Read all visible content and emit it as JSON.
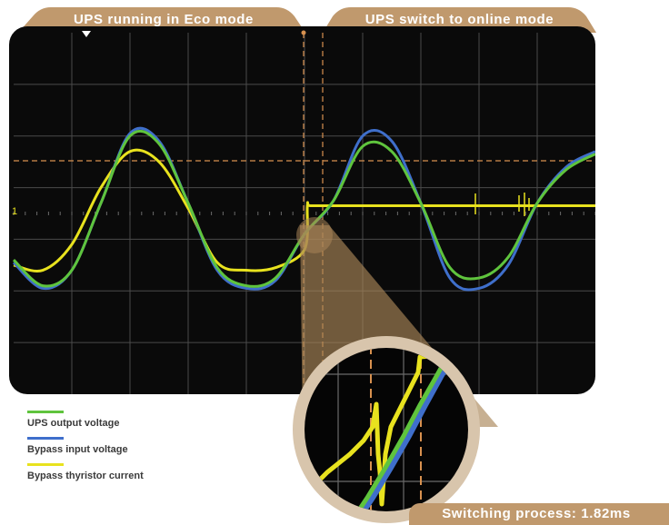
{
  "header": {
    "left_label": "UPS running in Eco mode",
    "right_label": "UPS switch to online mode"
  },
  "channel_marker": "1",
  "legend": [
    {
      "label": "UPS output voltage",
      "color": "#5fc43d"
    },
    {
      "label": "Bypass input voltage",
      "color": "#3f6fcb"
    },
    {
      "label": "Bypass thyristor current",
      "color": "#e8e21e"
    }
  ],
  "switching_label": "Switching process: 1.82ms",
  "colors": {
    "tab": "#c0996d",
    "screen": "#0a0a0a",
    "grid": "#4a4a4a",
    "cursor": "#d8914f",
    "bezel": "#d8c5ac",
    "cone": "#a98557"
  },
  "chart_data": {
    "type": "line",
    "title": "",
    "xlabel": "",
    "ylabel": "",
    "grid": true,
    "x_divisions": 10,
    "y_divisions": 7,
    "xlim": [
      0,
      10
    ],
    "ylim": [
      -3.5,
      3.5
    ],
    "switch_time_div": 5.05,
    "series": [
      {
        "name": "UPS output voltage",
        "color": "#5fc43d",
        "x": [
          0,
          0.5,
          1,
          1.5,
          2,
          2.5,
          3,
          3.5,
          4,
          4.5,
          5,
          5.5,
          6,
          6.5,
          7,
          7.5,
          8,
          8.5,
          9,
          9.5,
          10
        ],
        "y": [
          -0.9,
          -1.4,
          -1.1,
          0.2,
          1.5,
          1.35,
          0.2,
          -1.05,
          -1.4,
          -1.25,
          -0.4,
          0.25,
          1.3,
          1.2,
          0.2,
          -1.05,
          -1.25,
          -0.85,
          0.2,
          0.85,
          1.15
        ]
      },
      {
        "name": "Bypass input voltage",
        "color": "#3f6fcb",
        "x": [
          0,
          0.5,
          1,
          1.5,
          2,
          2.5,
          3,
          3.5,
          4,
          4.5,
          5,
          5.5,
          6,
          6.5,
          7,
          7.5,
          8,
          8.5,
          9,
          9.5,
          10
        ],
        "y": [
          -0.95,
          -1.45,
          -1.1,
          0.2,
          1.55,
          1.4,
          0.2,
          -1.1,
          -1.45,
          -1.3,
          -0.4,
          0.25,
          1.5,
          1.4,
          0.2,
          -1.25,
          -1.45,
          -1.0,
          0.2,
          0.9,
          1.2
        ]
      },
      {
        "name": "Bypass thyristor current",
        "color": "#e8e21e",
        "x": [
          0,
          0.5,
          1,
          1.5,
          2,
          2.5,
          3,
          3.5,
          4,
          4.5,
          5,
          5.05,
          5.1,
          5.5,
          6,
          7,
          8,
          9,
          10
        ],
        "y": [
          -1.0,
          -1.1,
          -0.6,
          0.5,
          1.2,
          1.0,
          0.1,
          -0.95,
          -1.1,
          -1.05,
          -0.7,
          0.15,
          0.15,
          0.15,
          0.15,
          0.15,
          0.15,
          0.15,
          0.15
        ]
      }
    ]
  }
}
